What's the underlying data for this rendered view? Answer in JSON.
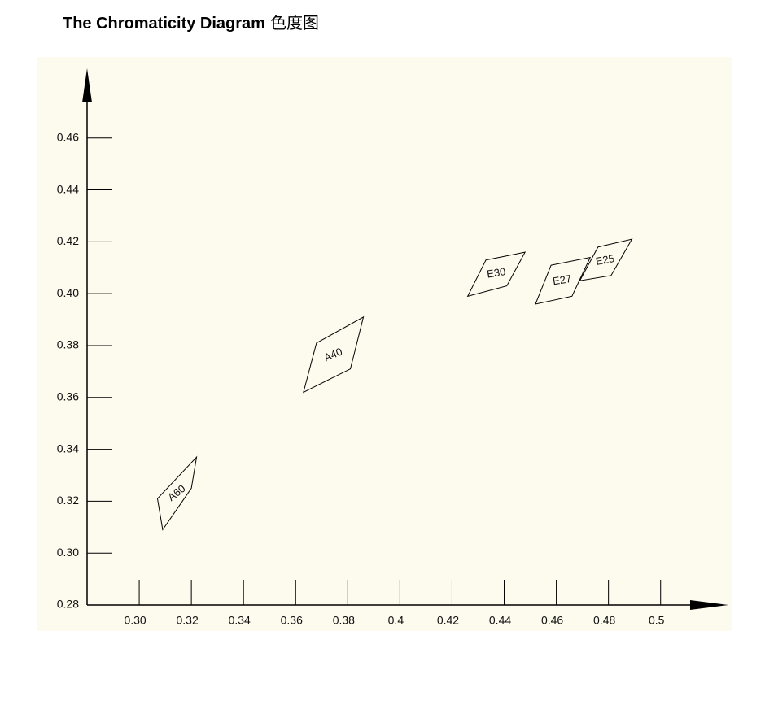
{
  "chart_data": {
    "type": "polygon",
    "title": "The Chromaticity Diagram",
    "subtitle": "色度图",
    "xlim": [
      0.28,
      0.526
    ],
    "ylim": [
      0.28,
      0.485
    ],
    "xticks": [
      {
        "value": 0.3,
        "label": "0.30"
      },
      0.32,
      0.34,
      0.36,
      0.38,
      0.4,
      0.42,
      0.44,
      0.46,
      0.48,
      0.5
    ],
    "yticks": [
      0.28,
      {
        "value": 0.3,
        "label": "0.30"
      },
      0.32,
      0.34,
      0.36,
      0.38,
      {
        "value": 0.4,
        "label": "0.40"
      },
      0.42,
      0.44,
      0.46
    ],
    "color": "#000000",
    "series": [
      {
        "name": "A60",
        "x": [
          0.307,
          0.322,
          0.32,
          0.309
        ],
        "y": [
          0.321,
          0.337,
          0.325,
          0.309
        ]
      },
      {
        "name": "A40",
        "x": [
          0.368,
          0.386,
          0.381,
          0.363
        ],
        "y": [
          0.381,
          0.391,
          0.371,
          0.362
        ]
      },
      {
        "name": "E30",
        "x": [
          0.433,
          0.448,
          0.441,
          0.426
        ],
        "y": [
          0.413,
          0.416,
          0.403,
          0.399
        ]
      },
      {
        "name": "E27",
        "x": [
          0.458,
          0.473,
          0.466,
          0.452
        ],
        "y": [
          0.411,
          0.414,
          0.399,
          0.396
        ]
      },
      {
        "name": "E25",
        "x": [
          0.476,
          0.489,
          0.481,
          0.469
        ],
        "y": [
          0.418,
          0.421,
          0.407,
          0.405
        ]
      }
    ]
  }
}
